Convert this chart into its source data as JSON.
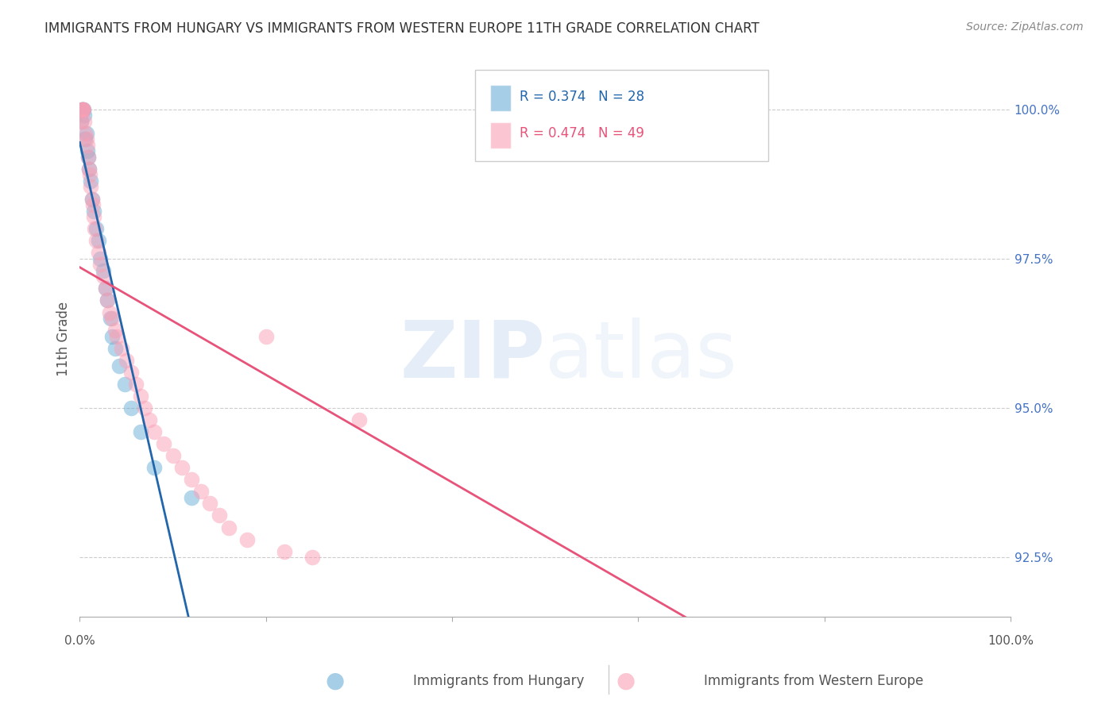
{
  "title": "IMMIGRANTS FROM HUNGARY VS IMMIGRANTS FROM WESTERN EUROPE 11TH GRADE CORRELATION CHART",
  "source": "Source: ZipAtlas.com",
  "ylabel": "11th Grade",
  "right_yticks": [
    92.5,
    95.0,
    97.5,
    100.0
  ],
  "right_ytick_labels": [
    "92.5%",
    "95.0%",
    "97.5%",
    "100.0%"
  ],
  "hungary_color": "#6baed6",
  "western_color": "#fa9fb5",
  "hungary_line_color": "#2166ac",
  "western_line_color": "#e8537a",
  "hungary_R": 0.374,
  "hungary_N": 28,
  "western_R": 0.474,
  "western_N": 49,
  "legend_label_hungary": "Immigrants from Hungary",
  "legend_label_western": "Immigrants from Western Europe",
  "xmin": 0.0,
  "xmax": 1.0,
  "ymin": 91.5,
  "ymax": 100.8,
  "background_color": "#ffffff",
  "grid_color": "#cccccc",
  "title_color": "#333333",
  "right_axis_color": "#4472c4"
}
